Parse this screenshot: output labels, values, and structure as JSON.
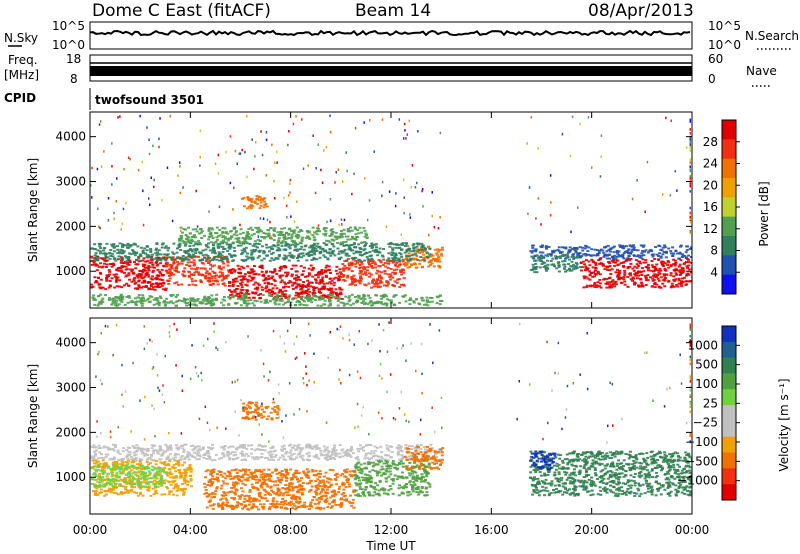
{
  "header": {
    "title": "Dome C East (fitACF)",
    "beam": "Beam 14",
    "date": "08/Apr/2013"
  },
  "top_panels": {
    "nsky_label": "N.Sky",
    "nsearch_label": "N.Search",
    "nsky_ticks": [
      "10^5",
      "10^0"
    ],
    "nsearch_ticks": [
      "10^5",
      "10^0"
    ],
    "freq_label_1": "Freq.",
    "freq_label_2": "[MHz]",
    "freq_ticks": [
      "18",
      "8"
    ],
    "nave_label": "Nave",
    "nave_ticks": [
      "60",
      "0"
    ],
    "cpid_label": "CPID",
    "cpid_value": "twofsound 3501"
  },
  "colors": {
    "power_scale": [
      "#1010ee",
      "#2050b0",
      "#308060",
      "#50a050",
      "#c0d030",
      "#f0a000",
      "#f07000",
      "#f03010",
      "#e00000"
    ],
    "velocity_scale": [
      "#1030c0",
      "#206090",
      "#308050",
      "#50a040",
      "#70d040",
      "#c0c0c0",
      "#c0c0c0",
      "#f0a000",
      "#f07000",
      "#f03010",
      "#e00000"
    ]
  },
  "chart_data": [
    {
      "type": "heatmap",
      "name": "power",
      "ylabel": "Slant Range [km]",
      "yticks": [
        "4000",
        "3000",
        "2000",
        "1000"
      ],
      "ytick_values": [
        4000,
        3000,
        2000,
        1000
      ],
      "ylim": [
        180,
        4550
      ],
      "xlim": [
        0,
        24
      ],
      "colorbar_label": "Power [dB]",
      "colorbar_ticks": [
        "28",
        "24",
        "20",
        "16",
        "12",
        "8",
        "4"
      ],
      "colorbar_range": [
        0,
        32
      ],
      "blobs": [
        {
          "x0": 0.0,
          "x1": 3.0,
          "y0": 600,
          "y1": 1350,
          "color": "#e00000"
        },
        {
          "x0": 3.0,
          "x1": 5.5,
          "y0": 700,
          "y1": 1350,
          "color": "#f03010"
        },
        {
          "x0": 5.5,
          "x1": 10.0,
          "y0": 400,
          "y1": 1150,
          "color": "#e00000"
        },
        {
          "x0": 10.0,
          "x1": 12.5,
          "y0": 650,
          "y1": 1300,
          "color": "#f03010"
        },
        {
          "x0": 12.5,
          "x1": 14.0,
          "y0": 1100,
          "y1": 1600,
          "color": "#f07000"
        },
        {
          "x0": 0.0,
          "x1": 13.5,
          "y0": 1250,
          "y1": 1650,
          "color": "#308060"
        },
        {
          "x0": 3.5,
          "x1": 11.0,
          "y0": 1650,
          "y1": 2000,
          "color": "#50a050"
        },
        {
          "x0": 17.5,
          "x1": 24.0,
          "y0": 1300,
          "y1": 1600,
          "color": "#2050b0"
        },
        {
          "x0": 19.5,
          "x1": 24.0,
          "y0": 650,
          "y1": 1300,
          "color": "#e00000"
        },
        {
          "x0": 17.5,
          "x1": 19.5,
          "y0": 1000,
          "y1": 1400,
          "color": "#308060"
        },
        {
          "x0": 6.0,
          "x1": 7.0,
          "y0": 2400,
          "y1": 2700,
          "color": "#f07000"
        },
        {
          "x0": 0.0,
          "x1": 14.0,
          "y0": 250,
          "y1": 500,
          "color": "#50a050"
        }
      ]
    },
    {
      "type": "heatmap",
      "name": "velocity",
      "ylabel": "Slant Range [km]",
      "yticks": [
        "4000",
        "3000",
        "2000",
        "1000"
      ],
      "ytick_values": [
        4000,
        3000,
        2000,
        1000
      ],
      "ylim": [
        180,
        4550
      ],
      "xlim": [
        0,
        24
      ],
      "colorbar_label": "Velocity [m s⁻¹]",
      "colorbar_ticks": [
        "1000",
        "500",
        "100",
        "25",
        "−25",
        "−100",
        "−500",
        "−1000"
      ],
      "blobs": [
        {
          "x0": 0.0,
          "x1": 4.0,
          "y0": 600,
          "y1": 1400,
          "color": "#f0a000"
        },
        {
          "x0": 0.0,
          "x1": 14.0,
          "y0": 1400,
          "y1": 1750,
          "color": "#c0c0c0"
        },
        {
          "x0": 4.5,
          "x1": 10.5,
          "y0": 300,
          "y1": 1200,
          "color": "#f07000"
        },
        {
          "x0": 10.5,
          "x1": 13.5,
          "y0": 600,
          "y1": 1400,
          "color": "#50a040"
        },
        {
          "x0": 12.5,
          "x1": 14.0,
          "y0": 1200,
          "y1": 1700,
          "color": "#f07000"
        },
        {
          "x0": 17.5,
          "x1": 24.0,
          "y0": 600,
          "y1": 1600,
          "color": "#308050"
        },
        {
          "x0": 17.5,
          "x1": 18.5,
          "y0": 1200,
          "y1": 1600,
          "color": "#1030c0"
        },
        {
          "x0": 6.0,
          "x1": 7.5,
          "y0": 2300,
          "y1": 2700,
          "color": "#f07000"
        },
        {
          "x0": 0.0,
          "x1": 3.0,
          "y0": 800,
          "y1": 1300,
          "color": "#70d040"
        }
      ],
      "xticks": [
        "00:00",
        "04:00",
        "08:00",
        "12:00",
        "16:00",
        "20:00",
        "00:00"
      ],
      "xtick_values": [
        0,
        4,
        8,
        12,
        16,
        20,
        24
      ],
      "xlabel": "Time UT"
    }
  ]
}
